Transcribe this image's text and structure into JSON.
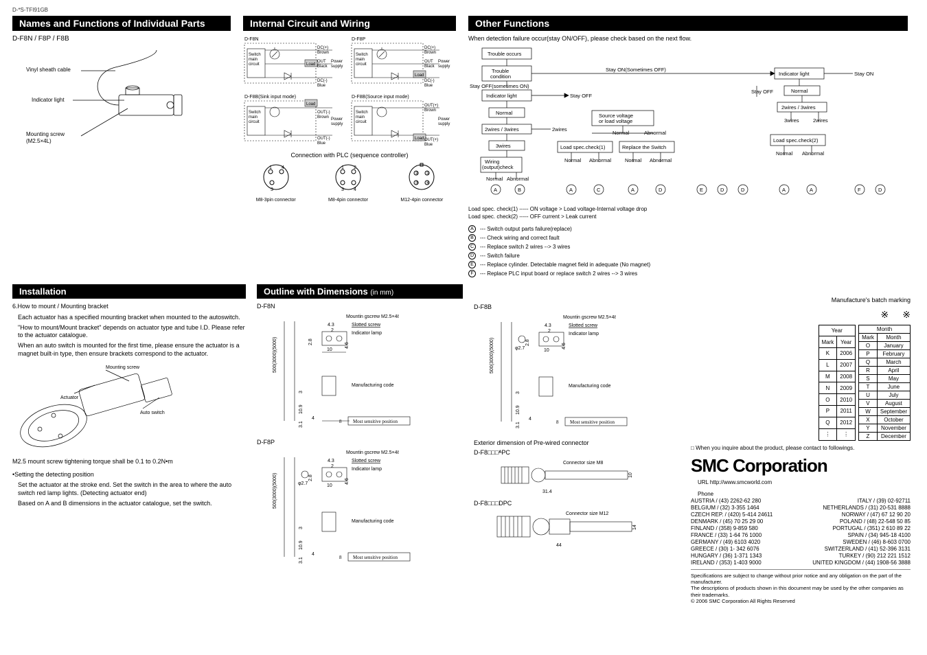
{
  "doc_id": "D-*S-TFI91GB",
  "sections": {
    "names": {
      "title": "Names and Functions of Individual Parts",
      "model": "D-F8N / F8P / F8B",
      "labels": {
        "sheath": "Vinyl sheath cable",
        "indicator": "Indicator light",
        "screw": "Mounting screw\n(M2.5×4L)"
      }
    },
    "internal": {
      "title": "Internal Circuit and Wiring",
      "d_f8n": "D-F8N",
      "d_f8p": "D-F8P",
      "d_f8b_sink": "D-F8B(Sink input mode)",
      "d_f8b_source": "D-F8B(Source input mode)",
      "wire_labels": {
        "dc_plus_brown": "DC(+)\nBrown",
        "out_black": "OUT\nBlack",
        "dc_minus_blue": "DC(-)\nBlue",
        "out_minus_brown": "OUT(-)\nBrown",
        "out_minus_blue": "OUT(-)\nBlue",
        "out_plus_brown": "OUT(+)\nBrown",
        "out_plus_blue": "OUT(+)\nBlue",
        "switch_main": "Switch\nmain\ncircuit",
        "load": "Load",
        "power": "Power\nsupply"
      },
      "plc_title": "Connection with PLC (sequence controller)",
      "m8_3": "M8-3pin connector",
      "m8_4": "M8-4pin connector",
      "m12_4": "M12-4pin connector"
    },
    "other": {
      "title": "Other Functions",
      "intro": "When detection failure occur(stay ON/OFF), please check based on the next flow.",
      "flow": {
        "trouble_occurs": "Trouble occurs",
        "trouble_condition": "Trouble\ncondition",
        "stay_off_sometimes_on": "Stay OFF(sometimes ON)",
        "stay_on_sometimes_off": "Stay ON(Sometimes OFF)",
        "indicator_light": "Indicator light",
        "stay_off": "Stay OFF",
        "stay_on": "Stay ON",
        "normal": "Normal",
        "wires_2_3": "2wires / 3wires",
        "wires_2": "2wires",
        "wires_3": "3wires",
        "source_voltage": "Source voltage\nor load voltage",
        "abnormal": "Abnormal",
        "load_spec1": "Load spec.check(1)",
        "load_spec2": "Load spec.check(2)",
        "replace_switch": "Replace the Switch",
        "wiring_check": "Wiring\n(output)check"
      },
      "notes": {
        "n1": "Load spec. check(1) ----- ON voltage > Load voltage-Internal voltage drop",
        "n2": "Load spec. check(2) ----- OFF current > Leak current"
      },
      "legend": [
        {
          "mark": "A",
          "text": "--- Switch output parts failure(replace)"
        },
        {
          "mark": "B",
          "text": "--- Check wiring and correct fault"
        },
        {
          "mark": "C",
          "text": "--- Replace switch 2 wires  -->  3 wires"
        },
        {
          "mark": "D",
          "text": "--- Switch failure"
        },
        {
          "mark": "E",
          "text": "--- Replace cylinder.  Detectable magnet field in adequate (No magnet)"
        },
        {
          "mark": "F",
          "text": "--- Replace PLC input board or replace switch 2 wires --> 3 wires"
        }
      ]
    },
    "install": {
      "title": "Installation",
      "h6": "6.How to mount / Mounting bracket",
      "p1": "Each actuator has a specified mounting bracket when mounted to the autoswitch.",
      "p2": "\"How to mount/Mount bracket\" depends on actuator type and tube I.D. Please refer to the actuator catalogue.",
      "p3": "When an auto switch is mounted for the first time, please ensure the actuator is a magnet built-in type, then ensure brackets correspond to the actuator.",
      "labels": {
        "mounting": "Mounting screw",
        "actuator": "Actuator",
        "autoswitch": "Auto switch"
      },
      "torque": "M2.5 mount screw tightening torque shall be 0.1 to 0.2N•m",
      "detect_h": "•Setting the detecting position",
      "detect_p1": "Set the actuator at the stroke end. Set the switch in the area to where the auto switch red lamp lights. (Detecting actuator end)",
      "detect_p2": "Based on A and B dimensions in the actuator catalogue, set the switch."
    },
    "outline": {
      "title": "Outline with Dimensions",
      "unit": "(in mm)",
      "models": {
        "f8n": "D-F8N",
        "f8p": "D-F8P",
        "f8b": "D-F8B"
      },
      "dims": {
        "screw": "Mountin gscrew M2.5×4ℓ",
        "slotted": "Slotted screw",
        "indicator": "Indicator lamp",
        "mfg_code": "Manufacturing code",
        "sensitive": "Most sensitive position",
        "v43": "4.3",
        "v2": "2",
        "v28": "2.8",
        "v46": "4.6",
        "v10": "10",
        "v500": "500(3000)(5000)",
        "v3": "3",
        "v109": "10.9",
        "v31": "3.1",
        "v8": "8",
        "v4": "4",
        "phi27": "φ2.7"
      },
      "prewired_h": "Exterior dimension of Pre-wired connector",
      "model_apc": "D-F8□□□ᴬPC",
      "model_dpc": "D-F8□□□DPC",
      "conn_m8": "Connector size M8",
      "conn_m12": "Connector size M12",
      "m8_len": "31.4",
      "m8_h": "10",
      "m12_len": "44",
      "m12_h": "14"
    },
    "batch": {
      "title": "Manufacture's batch marking",
      "year_h": "Year",
      "month_h": "Month",
      "mark_h": "Mark",
      "years": [
        {
          "m": "K",
          "y": "2006"
        },
        {
          "m": "L",
          "y": "2007"
        },
        {
          "m": "M",
          "y": "2008"
        },
        {
          "m": "N",
          "y": "2009"
        },
        {
          "m": "O",
          "y": "2010"
        },
        {
          "m": "P",
          "y": "2011"
        },
        {
          "m": "Q",
          "y": "2012"
        },
        {
          "m": "⋮",
          "y": "⋮"
        }
      ],
      "months": [
        {
          "m": "O",
          "mo": "January"
        },
        {
          "m": "P",
          "mo": "February"
        },
        {
          "m": "Q",
          "mo": "March"
        },
        {
          "m": "R",
          "mo": "April"
        },
        {
          "m": "S",
          "mo": "May"
        },
        {
          "m": "T",
          "mo": "June"
        },
        {
          "m": "U",
          "mo": "July"
        },
        {
          "m": "V",
          "mo": "August"
        },
        {
          "m": "W",
          "mo": "September"
        },
        {
          "m": "X",
          "mo": "October"
        },
        {
          "m": "Y",
          "mo": "November"
        },
        {
          "m": "Z",
          "mo": "December"
        }
      ]
    },
    "contact": {
      "inquire": "When you inquire about the product, please contact to followings.",
      "logo": "SMC Corporation",
      "url": "URL http://www.smcworld.com",
      "phone_h": "Phone",
      "left": [
        "AUSTRIA / (43) 2262-62 280",
        "BELGIUM / (32) 3-355 1464",
        "CZECH REP. / (420) 5-414 24611",
        "DENMARK / (45) 70 25 29 00",
        "FINLAND / (358) 9-859 580",
        "FRANCE / (33) 1-64 76 1000",
        "GERMANY / (49) 6103 4020",
        "GREECE / (30) 1- 342 6076",
        "HUNGARY / (36) 1-371 1343",
        "IRELAND / (353) 1-403 9000"
      ],
      "right": [
        "ITALY / (39) 02-92711",
        "NETHERLANDS / (31) 20-531 8888",
        "NORWAY / (47) 67 12 90 20",
        "POLAND / (48) 22-548 50 85",
        "PORTUGAL / (351) 2 610 89 22",
        "SPAIN / (34) 945-18 4100",
        "SWEDEN / (46) 8-603 0700",
        "SWITZERLAND / (41) 52-396 3131",
        "TURKEY / (90) 212 221 1512",
        "UNITED KINGDOM / (44) 1908-56 3888"
      ],
      "note1": "Specifications are subject to change without prior notice and any obligation on the part of the manufacturer.",
      "note2": "The descriptions of products shown in this document may be used by the other companies as their trademarks.",
      "note3": "© 2006 SMC Corporation All Rights Reserved"
    }
  }
}
